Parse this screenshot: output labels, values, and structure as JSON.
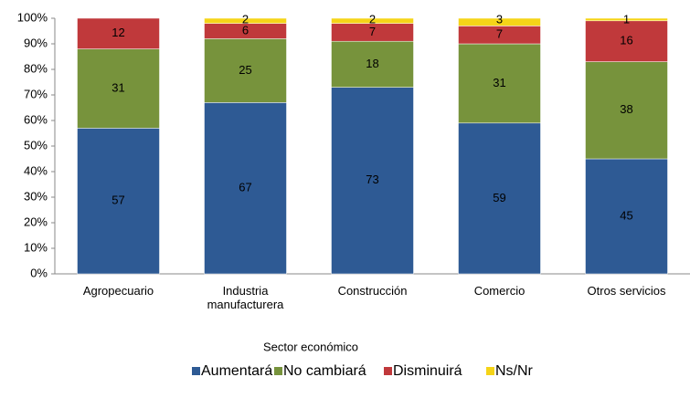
{
  "chart_data": {
    "type": "stacked_bar",
    "x_label": "Sector económico",
    "categories": [
      "Agropecuario",
      "Industria manufacturera",
      "Construcción",
      "Comercio",
      "Otros servicios"
    ],
    "series": [
      {
        "name": "Aumentará",
        "color": "#2e5a94",
        "values": [
          57,
          67,
          73,
          59,
          45
        ]
      },
      {
        "name": "No cambiará",
        "color": "#77933c",
        "values": [
          31,
          25,
          18,
          31,
          38
        ]
      },
      {
        "name": "Disminuirá",
        "color": "#c0393b",
        "values": [
          12,
          6,
          7,
          7,
          16
        ]
      },
      {
        "name": "Ns/Nr",
        "color": "#f5d418",
        "values": [
          null,
          2,
          2,
          3,
          1
        ]
      }
    ],
    "ylim": [
      0,
      100
    ],
    "yticks": [
      {
        "value": 0,
        "label": "0%"
      },
      {
        "value": 10,
        "label": "10%"
      },
      {
        "value": 20,
        "label": "20%"
      },
      {
        "value": 30,
        "label": "30%"
      },
      {
        "value": 40,
        "label": "40%"
      },
      {
        "value": 50,
        "label": "50%"
      },
      {
        "value": 60,
        "label": "60%"
      },
      {
        "value": 70,
        "label": "70%"
      },
      {
        "value": 80,
        "label": "80%"
      },
      {
        "value": 90,
        "label": "90%"
      },
      {
        "value": 100,
        "label": "100%"
      }
    ],
    "grid": false,
    "legend": "bottom"
  }
}
